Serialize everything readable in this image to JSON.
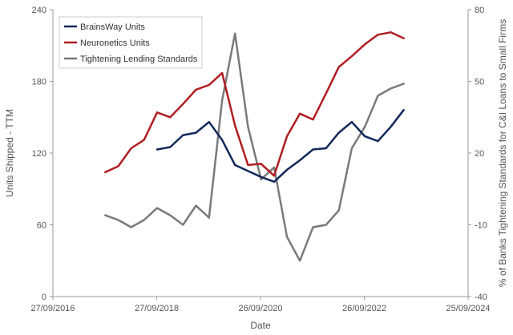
{
  "chart_data": {
    "type": "line",
    "x_type": "date",
    "xlabel": "Date",
    "ylabel_left": "Units Shipped - TTM",
    "ylabel_right": "% of Banks Tightening Standards for C&I Loans to Small Firms",
    "x_range": [
      "2016-09-27",
      "2024-09-25"
    ],
    "x_ticks": [
      "2016-09-27",
      "2018-09-27",
      "2020-09-26",
      "2022-09-26",
      "2024-09-25"
    ],
    "x_tick_labels": [
      "27/09/2016",
      "27/09/2018",
      "26/09/2020",
      "26/09/2022",
      "25/09/2024"
    ],
    "y_left_range": [
      0,
      240
    ],
    "y_left_ticks": [
      0,
      60,
      120,
      180,
      240
    ],
    "y_left_tick_labels": [
      "0",
      "60",
      "120",
      "180",
      "240"
    ],
    "y_right_range": [
      -40,
      80
    ],
    "y_right_ticks": [
      -40,
      -10,
      20,
      50,
      80
    ],
    "y_right_tick_labels": [
      "-40",
      "-10",
      "20",
      "50",
      "80"
    ],
    "grid": false,
    "legend_position": "top-left",
    "series": [
      {
        "name": "BrainsWay Units",
        "color": "#14285a",
        "axis": "left",
        "points": [
          [
            "2018-09-30",
            123
          ],
          [
            "2018-12-31",
            125
          ],
          [
            "2019-03-31",
            135
          ],
          [
            "2019-06-30",
            137
          ],
          [
            "2019-09-30",
            146
          ],
          [
            "2019-12-31",
            131
          ],
          [
            "2020-03-31",
            110
          ],
          [
            "2020-06-30",
            105
          ],
          [
            "2020-09-30",
            100
          ],
          [
            "2020-12-31",
            96
          ],
          [
            "2021-03-31",
            106
          ],
          [
            "2021-06-30",
            114
          ],
          [
            "2021-09-30",
            123
          ],
          [
            "2021-12-31",
            124
          ],
          [
            "2022-03-31",
            137
          ],
          [
            "2022-06-30",
            146
          ],
          [
            "2022-09-30",
            134
          ],
          [
            "2022-12-31",
            130
          ],
          [
            "2023-03-31",
            142
          ],
          [
            "2023-06-30",
            156
          ]
        ]
      },
      {
        "name": "Neuronetics Units",
        "color": "#b01e22",
        "axis": "left",
        "points": [
          [
            "2017-09-30",
            104
          ],
          [
            "2017-12-31",
            109
          ],
          [
            "2018-03-31",
            124
          ],
          [
            "2018-06-30",
            131
          ],
          [
            "2018-09-30",
            154
          ],
          [
            "2018-12-31",
            150
          ],
          [
            "2019-03-31",
            161
          ],
          [
            "2019-06-30",
            173
          ],
          [
            "2019-09-30",
            177
          ],
          [
            "2019-12-31",
            187
          ],
          [
            "2020-03-31",
            143
          ],
          [
            "2020-06-30",
            110
          ],
          [
            "2020-09-30",
            111
          ],
          [
            "2020-12-31",
            101
          ],
          [
            "2021-03-31",
            134
          ],
          [
            "2021-06-30",
            153
          ],
          [
            "2021-09-30",
            148
          ],
          [
            "2021-12-31",
            170
          ],
          [
            "2022-03-31",
            192
          ],
          [
            "2022-06-30",
            201
          ],
          [
            "2022-09-30",
            211
          ],
          [
            "2022-12-31",
            219
          ],
          [
            "2023-03-31",
            221
          ],
          [
            "2023-06-30",
            216
          ]
        ]
      },
      {
        "name": "Tightening Lending Standards",
        "color": "#7a7a7a",
        "axis": "right",
        "points": [
          [
            "2017-09-30",
            -6
          ],
          [
            "2017-12-31",
            -8
          ],
          [
            "2018-03-31",
            -11
          ],
          [
            "2018-06-30",
            -8
          ],
          [
            "2018-09-30",
            -3
          ],
          [
            "2018-12-31",
            -6
          ],
          [
            "2019-03-31",
            -10
          ],
          [
            "2019-06-30",
            -2
          ],
          [
            "2019-09-30",
            -7
          ],
          [
            "2019-12-31",
            42
          ],
          [
            "2020-03-31",
            70
          ],
          [
            "2020-06-30",
            31
          ],
          [
            "2020-09-30",
            9
          ],
          [
            "2020-12-31",
            14
          ],
          [
            "2021-03-31",
            -15
          ],
          [
            "2021-06-30",
            -25
          ],
          [
            "2021-09-30",
            -11
          ],
          [
            "2021-12-31",
            -10
          ],
          [
            "2022-03-31",
            -4
          ],
          [
            "2022-06-30",
            22
          ],
          [
            "2022-09-30",
            31
          ],
          [
            "2022-12-31",
            44
          ],
          [
            "2023-03-31",
            47
          ],
          [
            "2023-06-30",
            49
          ]
        ]
      }
    ]
  }
}
